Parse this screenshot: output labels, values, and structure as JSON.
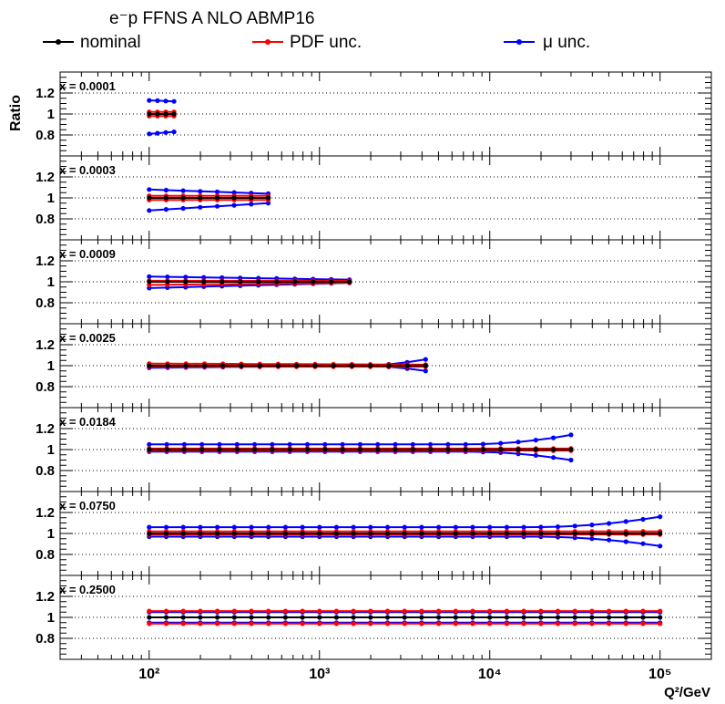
{
  "chart_data": {
    "type": "line",
    "title": "e⁻p FFNS A NLO ABMP16",
    "ylabel": "Ratio",
    "xlabel": "Q²/GeV",
    "x_scale": "log",
    "xlim": [
      30,
      200000
    ],
    "ylim": [
      0.6,
      1.4
    ],
    "x_ticks": [
      100,
      1000,
      10000,
      100000
    ],
    "x_tick_labels": [
      "10²",
      "10³",
      "10⁴",
      "10⁵"
    ],
    "y_ticks": [
      0.8,
      1,
      1.2
    ],
    "y_tick_labels": [
      "0.8",
      "1",
      "1.2"
    ],
    "grid": "horizontal dotted at 0.8, 1, 1.2",
    "legend": {
      "placement": "top",
      "entries": [
        {
          "name": "nominal",
          "color": "#000000"
        },
        {
          "name": "PDF unc.",
          "color": "#ff0000"
        },
        {
          "name": "μ unc.",
          "color": "#0000ff"
        }
      ]
    },
    "panels": [
      {
        "label": "x = 0.0001",
        "q2_max": 140,
        "n": 4,
        "nominal": [
          1,
          1
        ],
        "pdf_up": [
          1.02,
          1.02
        ],
        "pdf_down": [
          0.98,
          0.98
        ],
        "mu_up": [
          1.13,
          1.12
        ],
        "mu_down": [
          0.81,
          0.83
        ]
      },
      {
        "label": "x = 0.0003",
        "q2_max": 500,
        "n": 8,
        "nominal": [
          1,
          1
        ],
        "pdf_up": [
          1.02,
          1.02
        ],
        "pdf_down": [
          0.98,
          0.98
        ],
        "mu_up": [
          1.08,
          1.04
        ],
        "mu_down": [
          0.88,
          0.95
        ]
      },
      {
        "label": "x = 0.0009",
        "q2_max": 1500,
        "n": 12,
        "nominal": [
          1,
          1
        ],
        "pdf_up": [
          1.01,
          1.01
        ],
        "pdf_down": [
          0.97,
          0.99
        ],
        "mu_up": [
          1.05,
          1.02
        ],
        "mu_down": [
          0.94,
          0.99
        ]
      },
      {
        "label": "x = 0.0025",
        "q2_max": 4200,
        "n": 16,
        "nominal": [
          1,
          1
        ],
        "pdf_up": [
          1.02,
          1.01
        ],
        "pdf_down": [
          0.99,
          0.99
        ],
        "mu_up": [
          1.0,
          1.0,
          1.06
        ],
        "mu_down": [
          0.98,
          1.0,
          0.95
        ]
      },
      {
        "label": "x = 0.0184",
        "q2_max": 30000,
        "n": 25,
        "nominal": [
          1,
          1
        ],
        "pdf_up": [
          1.01,
          1.01
        ],
        "pdf_down": [
          0.99,
          0.99
        ],
        "mu_up": [
          1.05,
          1.05,
          1.14
        ],
        "mu_down": [
          0.98,
          0.98,
          0.9
        ]
      },
      {
        "label": "x = 0.0750",
        "q2_max": 100000,
        "n": 31,
        "nominal": [
          1,
          1
        ],
        "pdf_up": [
          1.02,
          1.02
        ],
        "pdf_down": [
          0.99,
          0.99
        ],
        "mu_up": [
          1.06,
          1.06,
          1.16
        ],
        "mu_down": [
          0.97,
          0.97,
          0.88
        ]
      },
      {
        "label": "x = 0.2500",
        "q2_max": 100000,
        "n": 31,
        "nominal": [
          1,
          1
        ],
        "pdf_up": [
          1.06,
          1.06
        ],
        "pdf_down": [
          0.94,
          0.94
        ],
        "mu_up": [
          1.05,
          1.05
        ],
        "mu_down": [
          0.95,
          0.95
        ]
      }
    ]
  }
}
